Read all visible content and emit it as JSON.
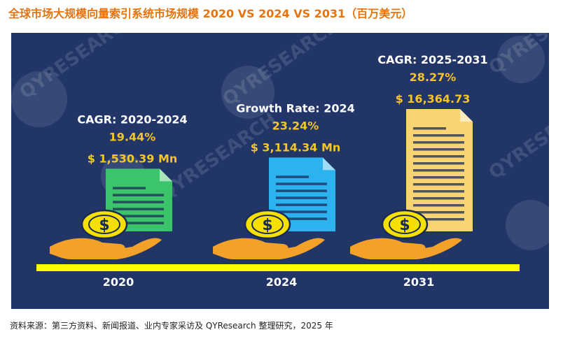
{
  "title": "全球市场大规模向量索引系统市场规模 2020 VS 2024 VS 2031（百万美元）",
  "source": "资料来源：第三方资料、新闻报道、业内专家采访及 QYResearch 整理研究，2025 年",
  "watermark": "QYRESEARCH",
  "colors": {
    "panel": "#213567",
    "accent_text": "#f5c52a",
    "timeline": "#ffff00",
    "doc_2020": "#3cc46a",
    "doc_2024": "#2ab3ee",
    "doc_2031": "#f8d472",
    "coin": "#f6e000",
    "hand": "#f4a12a"
  },
  "chart_data": {
    "type": "bar",
    "title": "全球市场大规模向量索引系统市场规模 2020 VS 2024 VS 2031（百万美元）",
    "unit": "百万美元",
    "categories": [
      "2020",
      "2024",
      "2031"
    ],
    "values": [
      1530.39,
      3114.34,
      16364.73
    ],
    "value_labels": [
      "$ 1,530.39 Mn",
      "$ 3,114.34 Mn",
      "$ 16,364.73"
    ],
    "growth": [
      {
        "label": "CAGR: 2020-2024",
        "value": "19.44%"
      },
      {
        "label": "Growth Rate: 2024",
        "value": "23.24%"
      },
      {
        "label": "CAGR: 2025-2031",
        "value": "28.27%"
      }
    ]
  }
}
